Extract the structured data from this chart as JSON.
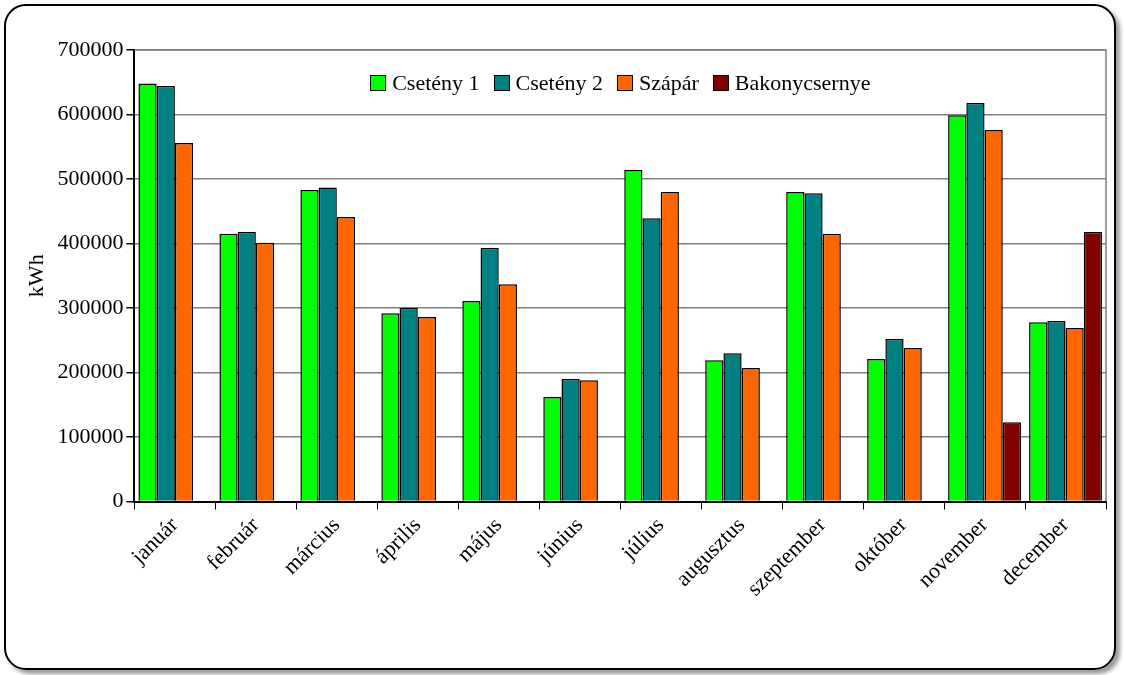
{
  "chart_data": {
    "type": "bar",
    "ylabel": "kWh",
    "categories": [
      "január",
      "február",
      "március",
      "április",
      "május",
      "június",
      "július",
      "augusztus",
      "szeptember",
      "október",
      "november",
      "december"
    ],
    "series": [
      {
        "name": "Csetény 1",
        "color": "#00ff00",
        "values": [
          648000,
          415000,
          483000,
          292000,
          311000,
          162000,
          514000,
          219000,
          480000,
          221000,
          599000,
          278000
        ]
      },
      {
        "name": "Csetény 2",
        "color": "#008080",
        "values": [
          644000,
          418000,
          487000,
          300000,
          393000,
          190000,
          439000,
          230000,
          478000,
          252000,
          618000,
          280000
        ]
      },
      {
        "name": "Szápár",
        "color": "#ff6600",
        "values": [
          556000,
          401000,
          441000,
          286000,
          337000,
          188000,
          480000,
          207000,
          415000,
          238000,
          576000,
          269000
        ]
      },
      {
        "name": "Bakonycsernye",
        "color": "#800000",
        "values": [
          null,
          null,
          null,
          null,
          null,
          null,
          null,
          null,
          null,
          null,
          123000,
          418000
        ]
      }
    ],
    "ylim": [
      0,
      700000
    ],
    "yticks": [
      0,
      100000,
      200000,
      300000,
      400000,
      500000,
      600000,
      700000
    ],
    "grid": "y",
    "legend": "top"
  }
}
